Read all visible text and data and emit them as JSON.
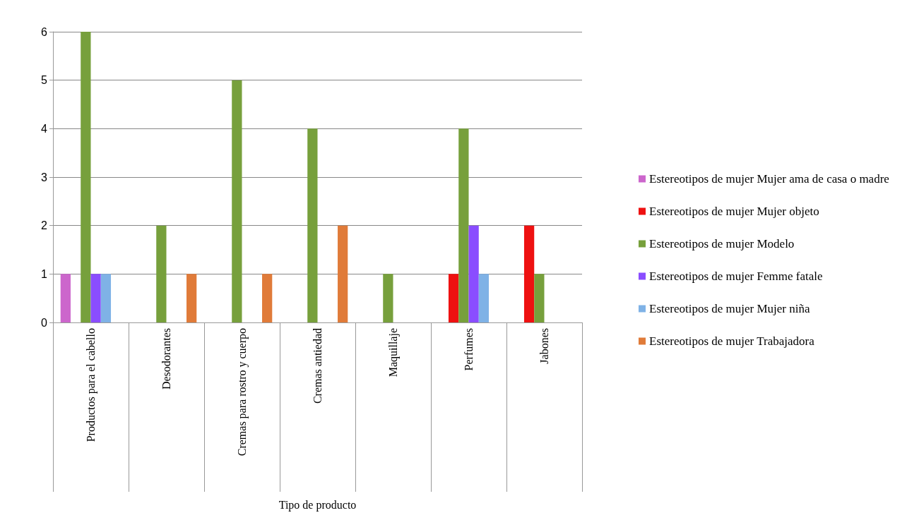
{
  "chart_data": {
    "type": "bar",
    "xlabel": "Tipo de producto",
    "categories": [
      "Productos para el cabello",
      "Desodorantes",
      "Cremas para rostro y cuerpo",
      "Cremas antiedad",
      "Maquillaje",
      "Perfumes",
      "Jabones"
    ],
    "series": [
      {
        "name": "Estereotipos de mujer Mujer ama de casa o madre",
        "color": "#cc66cc",
        "values": [
          1,
          0,
          0,
          0,
          0,
          0,
          0
        ]
      },
      {
        "name": "Estereotipos de mujer Mujer objeto",
        "color": "#ee1111",
        "values": [
          0,
          0,
          0,
          0,
          0,
          1,
          2
        ]
      },
      {
        "name": "Estereotipos de mujer Modelo",
        "color": "#77a03c",
        "values": [
          6,
          2,
          5,
          4,
          1,
          4,
          1
        ]
      },
      {
        "name": "Estereotipos de mujer Femme fatale",
        "color": "#8a4dff",
        "values": [
          1,
          0,
          0,
          0,
          0,
          2,
          0
        ]
      },
      {
        "name": "Estereotipos de mujer Mujer niña",
        "color": "#7fb2e6",
        "values": [
          1,
          0,
          0,
          0,
          0,
          1,
          0
        ]
      },
      {
        "name": "Estereotipos de mujer Trabajadora",
        "color": "#e07b39",
        "values": [
          0,
          1,
          1,
          2,
          0,
          0,
          0
        ]
      }
    ],
    "ylim": [
      0,
      6
    ],
    "yticks": [
      0,
      1,
      2,
      3,
      4,
      5,
      6
    ],
    "grid": "y",
    "legend": "right"
  }
}
